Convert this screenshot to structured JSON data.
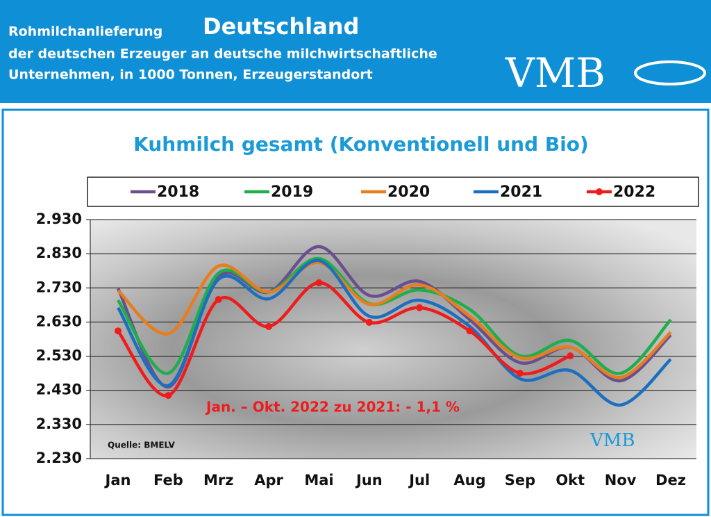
{
  "header": {
    "title_prefix": "Rohmilchanlieferung",
    "title_main": "Deutschland",
    "subtitle_line1": "der deutschen Erzeuger an deutsche milchwirtschaftliche",
    "subtitle_line2": "Unternehmen, in 1000 Tonnen, Erzeugerstandort",
    "logo": "VMB"
  },
  "chart_data": {
    "type": "line",
    "title": "Kuhmilch gesamt (Konventionell und Bio)",
    "categories": [
      "Jan",
      "Feb",
      "Mrz",
      "Apr",
      "Mai",
      "Jun",
      "Jul",
      "Aug",
      "Sep",
      "Okt",
      "Nov",
      "Dez"
    ],
    "series": [
      {
        "name": "2018",
        "color": "#6a4f8f",
        "values": [
          2728,
          2440,
          2763,
          2718,
          2851,
          2708,
          2749,
          2637,
          2511,
          2556,
          2458,
          2592
        ]
      },
      {
        "name": "2019",
        "color": "#1fae4b",
        "values": [
          2694,
          2480,
          2773,
          2718,
          2816,
          2684,
          2724,
          2667,
          2531,
          2576,
          2480,
          2637
        ]
      },
      {
        "name": "2020",
        "color": "#e87d1e",
        "values": [
          2722,
          2596,
          2794,
          2718,
          2804,
          2682,
          2739,
          2647,
          2525,
          2556,
          2468,
          2600
        ]
      },
      {
        "name": "2021",
        "color": "#1c6fbf",
        "values": [
          2672,
          2444,
          2755,
          2698,
          2810,
          2647,
          2694,
          2617,
          2464,
          2488,
          2387,
          2521
        ]
      },
      {
        "name": "2022",
        "color": "#ee1c1c",
        "markers": true,
        "values": [
          2604,
          2415,
          2696,
          2617,
          2745,
          2629,
          2672,
          2604,
          2480,
          2531,
          null,
          null
        ]
      }
    ],
    "ylim": [
      2230,
      2930
    ],
    "yticks": [
      {
        "value": 2230,
        "label": "2.230"
      },
      {
        "value": 2330,
        "label": "2.330"
      },
      {
        "value": 2430,
        "label": "2.430"
      },
      {
        "value": 2530,
        "label": "2.530"
      },
      {
        "value": 2630,
        "label": "2.630"
      },
      {
        "value": 2730,
        "label": "2.730"
      },
      {
        "value": 2830,
        "label": "2.830"
      },
      {
        "value": 2930,
        "label": "2.930"
      }
    ],
    "grid": true,
    "annotation": "Jan. – Okt. 2022 zu 2021: - 1,1 %",
    "source": "Quelle: BMELV"
  }
}
